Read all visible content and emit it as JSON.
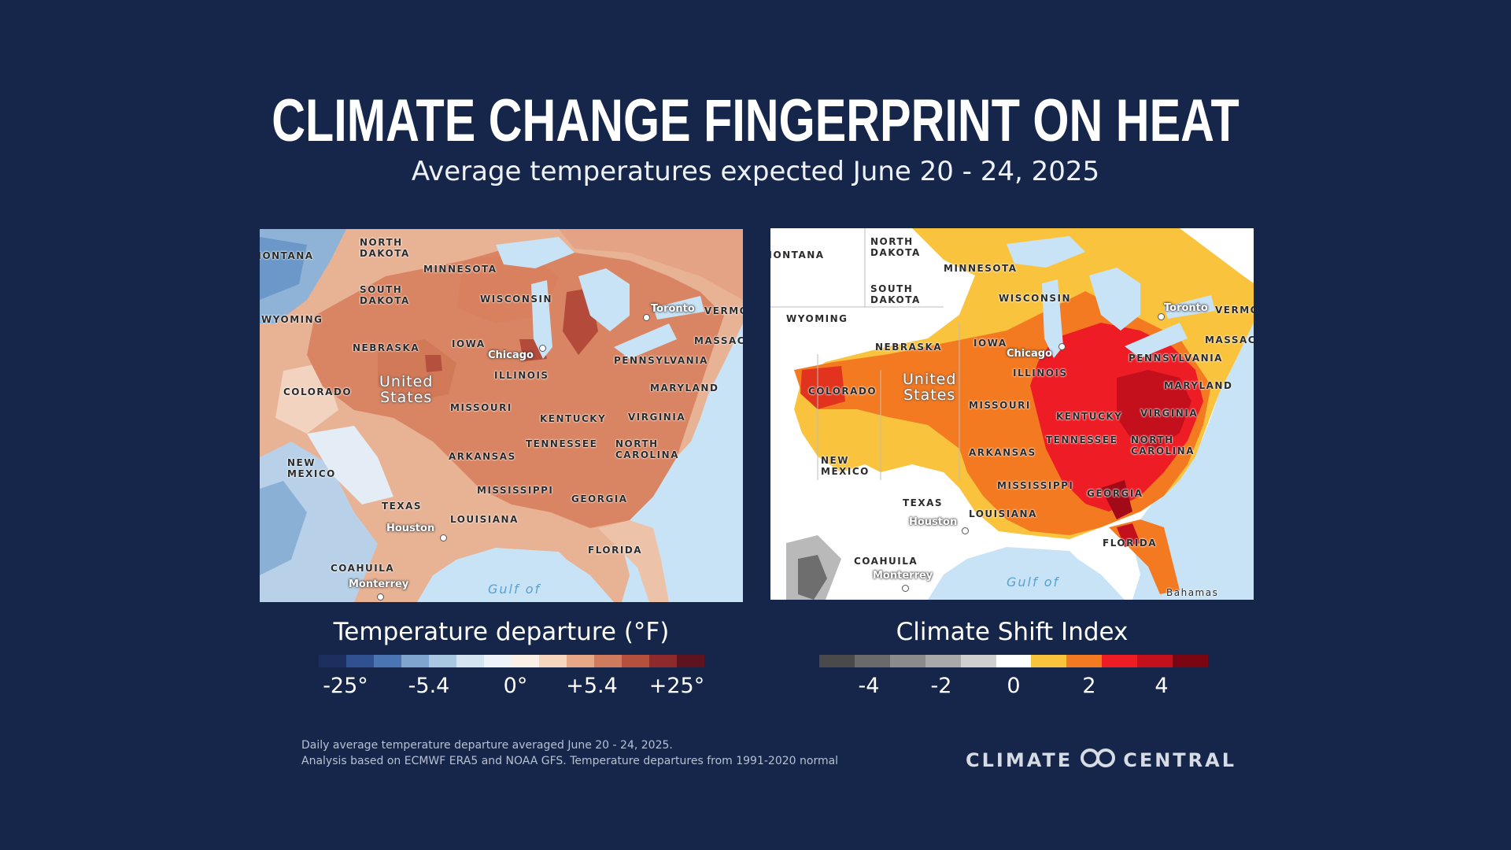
{
  "header": {
    "title": "CLIMATE CHANGE FINGERPRINT ON HEAT",
    "subtitle": "Average temperatures expected June 20 - 24, 2025"
  },
  "map_labels": {
    "states": {
      "north_dakota": "NORTH\nDAKOTA",
      "south_dakota": "SOUTH\nDAKOTA",
      "montana": "MONTANA",
      "minnesota": "MINNESOTA",
      "wisconsin": "WISCONSIN",
      "wyoming": "WYOMING",
      "nebraska": "NEBRASKA",
      "iowa": "IOWA",
      "illinois": "ILLINOIS",
      "colorado": "COLORADO",
      "missouri": "MISSOURI",
      "kentucky": "KENTUCKY",
      "virginia": "VIRGINIA",
      "tennessee": "TENNESSEE",
      "north_carolina": "NORTH\nCAROLINA",
      "arkansas": "ARKANSAS",
      "mississippi": "MISSISSIPPI",
      "georgia": "GEORGIA",
      "texas": "TEXAS",
      "louisiana": "LOUISIANA",
      "florida": "FLORIDA",
      "new_mexico": "NEW\nMEXICO",
      "pennsylvania": "PENNSYLVANIA",
      "maryland": "MARYLAND",
      "massachusetts": "MASSACH",
      "vermont": "VERMO",
      "coahuila": "COAHUILA"
    },
    "cities": {
      "toronto": "Toronto",
      "chicago": "Chicago",
      "houston": "Houston",
      "monterrey": "Monterrey"
    },
    "country": "United\nStates",
    "water": "Gulf of",
    "bahamas": "Bahamas"
  },
  "legend_left": {
    "title": "Temperature departure (°F)",
    "colors": [
      "#1d2f5e",
      "#2f5192",
      "#4a74b2",
      "#7ea6cf",
      "#a8c8e2",
      "#d5e4f1",
      "#eef3f9",
      "#fbf0e6",
      "#f6d6bf",
      "#e6a886",
      "#d07a5e",
      "#b5503f",
      "#8e2a2c",
      "#5e1420"
    ],
    "ticks": [
      "-25°",
      "-5.4",
      "0°",
      "+5.4",
      "+25°"
    ]
  },
  "legend_right": {
    "title": "Climate Shift Index",
    "colors": [
      "#4a4a4a",
      "#6a6a6a",
      "#8b8b8b",
      "#a9a9a9",
      "#cfcfcf",
      "#ffffff",
      "#f9c33d",
      "#f47a22",
      "#ee1c24",
      "#c4101c",
      "#7a0612"
    ],
    "ticks": [
      "-4",
      "-2",
      "0",
      "2",
      "4"
    ]
  },
  "footnote": {
    "line1": "Daily average temperature departure averaged June 20 - 24, 2025.",
    "line2": "Analysis based on ECMWF ERA5 and NOAA GFS. Temperature departures from 1991-2020 normal"
  },
  "brand": {
    "left": "CLIMATE",
    "right": "CENTRAL"
  }
}
